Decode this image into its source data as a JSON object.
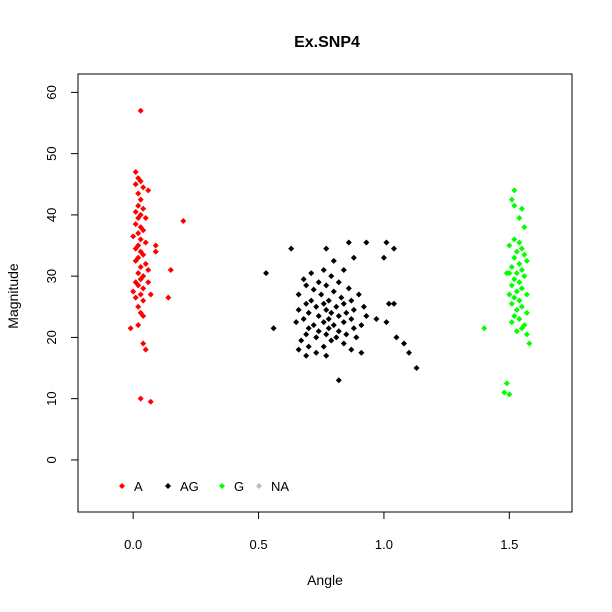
{
  "chart_data": {
    "type": "scatter",
    "title": "Ex.SNP4",
    "xlabel": "Angle",
    "ylabel": "Magnitude",
    "xlim": [
      -0.22,
      1.75
    ],
    "ylim": [
      -8.5,
      63
    ],
    "xticks": [
      0.0,
      0.5,
      1.0,
      1.5
    ],
    "xtick_labels": [
      "0.0",
      "0.5",
      "1.0",
      "1.5"
    ],
    "yticks": [
      0,
      10,
      20,
      30,
      40,
      50,
      60
    ],
    "ytick_labels": [
      "0",
      "10",
      "20",
      "30",
      "40",
      "50",
      "60"
    ],
    "grid": false,
    "legend": {
      "placement": "bottom-left",
      "entries": [
        {
          "label": "A",
          "color": "#ff0000"
        },
        {
          "label": "AG",
          "color": "#000000"
        },
        {
          "label": "G",
          "color": "#00ff00"
        },
        {
          "label": "NA",
          "color": "#bebebe"
        }
      ]
    },
    "series": [
      {
        "name": "A",
        "color": "#ff0000",
        "points": [
          [
            0.03,
            57.0
          ],
          [
            0.01,
            47.0
          ],
          [
            0.02,
            46.0
          ],
          [
            0.03,
            45.5
          ],
          [
            0.01,
            45.0
          ],
          [
            0.04,
            44.5
          ],
          [
            0.06,
            44.0
          ],
          [
            0.02,
            43.5
          ],
          [
            0.03,
            42.5
          ],
          [
            0.02,
            41.5
          ],
          [
            0.04,
            41.0
          ],
          [
            0.01,
            40.5
          ],
          [
            0.03,
            40.0
          ],
          [
            0.02,
            39.5
          ],
          [
            0.05,
            39.5
          ],
          [
            0.2,
            39.0
          ],
          [
            0.01,
            38.5
          ],
          [
            0.03,
            38.0
          ],
          [
            0.04,
            37.5
          ],
          [
            0.02,
            37.0
          ],
          [
            0.0,
            36.5
          ],
          [
            0.03,
            36.0
          ],
          [
            0.05,
            35.5
          ],
          [
            0.02,
            35.0
          ],
          [
            0.09,
            35.0
          ],
          [
            0.01,
            34.5
          ],
          [
            0.03,
            34.0
          ],
          [
            0.09,
            34.0
          ],
          [
            0.04,
            33.5
          ],
          [
            0.02,
            33.0
          ],
          [
            0.01,
            32.5
          ],
          [
            0.05,
            32.0
          ],
          [
            0.03,
            31.5
          ],
          [
            0.06,
            31.0
          ],
          [
            0.15,
            31.0
          ],
          [
            0.02,
            30.5
          ],
          [
            0.04,
            30.0
          ],
          [
            0.03,
            29.5
          ],
          [
            0.01,
            29.0
          ],
          [
            0.06,
            29.0
          ],
          [
            0.02,
            28.5
          ],
          [
            0.04,
            28.0
          ],
          [
            0.0,
            27.5
          ],
          [
            0.03,
            27.0
          ],
          [
            0.07,
            27.0
          ],
          [
            0.01,
            26.5
          ],
          [
            0.14,
            26.5
          ],
          [
            0.04,
            26.0
          ],
          [
            0.02,
            25.0
          ],
          [
            0.03,
            24.0
          ],
          [
            0.04,
            23.5
          ],
          [
            -0.01,
            21.5
          ],
          [
            0.02,
            22.0
          ],
          [
            0.04,
            19.0
          ],
          [
            0.05,
            18.0
          ],
          [
            0.03,
            10.0
          ],
          [
            0.07,
            9.5
          ]
        ]
      },
      {
        "name": "AG",
        "color": "#000000",
        "points": [
          [
            0.63,
            34.5
          ],
          [
            0.77,
            34.5
          ],
          [
            0.53,
            30.5
          ],
          [
            0.86,
            35.5
          ],
          [
            0.93,
            35.5
          ],
          [
            1.01,
            35.5
          ],
          [
            1.04,
            34.5
          ],
          [
            0.8,
            32.5
          ],
          [
            0.88,
            33.0
          ],
          [
            1.0,
            33.0
          ],
          [
            0.84,
            31.0
          ],
          [
            0.76,
            31.0
          ],
          [
            0.71,
            30.5
          ],
          [
            0.79,
            30.0
          ],
          [
            0.68,
            29.5
          ],
          [
            0.74,
            29.0
          ],
          [
            0.82,
            29.0
          ],
          [
            0.69,
            28.5
          ],
          [
            0.77,
            28.5
          ],
          [
            0.86,
            28.0
          ],
          [
            0.72,
            27.8
          ],
          [
            0.8,
            27.5
          ],
          [
            0.66,
            27.0
          ],
          [
            0.75,
            27.0
          ],
          [
            0.9,
            27.0
          ],
          [
            0.83,
            26.5
          ],
          [
            0.71,
            26.0
          ],
          [
            0.78,
            26.0
          ],
          [
            0.87,
            26.0
          ],
          [
            0.69,
            25.5
          ],
          [
            0.76,
            25.5
          ],
          [
            0.84,
            25.5
          ],
          [
            0.92,
            25.0
          ],
          [
            1.02,
            25.5
          ],
          [
            1.04,
            25.5
          ],
          [
            0.73,
            25.0
          ],
          [
            0.81,
            25.0
          ],
          [
            0.66,
            24.5
          ],
          [
            0.77,
            24.5
          ],
          [
            0.88,
            24.5
          ],
          [
            0.7,
            24.0
          ],
          [
            0.79,
            24.0
          ],
          [
            0.85,
            24.0
          ],
          [
            0.74,
            23.5
          ],
          [
            0.82,
            23.5
          ],
          [
            0.93,
            23.5
          ],
          [
            0.68,
            23.0
          ],
          [
            0.78,
            23.0
          ],
          [
            0.87,
            23.0
          ],
          [
            0.97,
            23.0
          ],
          [
            1.01,
            22.5
          ],
          [
            0.65,
            22.5
          ],
          [
            0.76,
            22.5
          ],
          [
            0.84,
            22.5
          ],
          [
            0.72,
            22.0
          ],
          [
            0.8,
            22.0
          ],
          [
            0.91,
            22.0
          ],
          [
            0.56,
            21.5
          ],
          [
            0.7,
            21.5
          ],
          [
            0.78,
            21.5
          ],
          [
            0.88,
            21.5
          ],
          [
            0.74,
            21.0
          ],
          [
            0.82,
            21.0
          ],
          [
            0.69,
            20.5
          ],
          [
            0.77,
            20.5
          ],
          [
            0.85,
            20.5
          ],
          [
            0.73,
            20.0
          ],
          [
            0.81,
            20.0
          ],
          [
            0.89,
            20.0
          ],
          [
            1.05,
            20.0
          ],
          [
            0.67,
            19.5
          ],
          [
            0.79,
            19.5
          ],
          [
            0.84,
            19.0
          ],
          [
            1.08,
            19.0
          ],
          [
            0.7,
            18.5
          ],
          [
            0.76,
            18.5
          ],
          [
            0.87,
            18.0
          ],
          [
            0.66,
            18.0
          ],
          [
            0.73,
            17.5
          ],
          [
            0.91,
            17.5
          ],
          [
            1.1,
            17.5
          ],
          [
            0.69,
            17.0
          ],
          [
            0.77,
            17.0
          ],
          [
            1.13,
            15.0
          ],
          [
            0.82,
            13.0
          ]
        ]
      },
      {
        "name": "G",
        "color": "#00ff00",
        "points": [
          [
            1.52,
            44.0
          ],
          [
            1.51,
            42.5
          ],
          [
            1.52,
            41.5
          ],
          [
            1.55,
            41.0
          ],
          [
            1.54,
            39.5
          ],
          [
            1.56,
            38.0
          ],
          [
            1.52,
            36.0
          ],
          [
            1.54,
            35.5
          ],
          [
            1.5,
            35.0
          ],
          [
            1.55,
            34.5
          ],
          [
            1.53,
            34.0
          ],
          [
            1.56,
            33.5
          ],
          [
            1.52,
            33.0
          ],
          [
            1.57,
            32.5
          ],
          [
            1.54,
            32.0
          ],
          [
            1.51,
            31.5
          ],
          [
            1.55,
            31.0
          ],
          [
            1.53,
            30.5
          ],
          [
            1.5,
            30.5
          ],
          [
            1.49,
            30.5
          ],
          [
            1.56,
            30.0
          ],
          [
            1.52,
            29.5
          ],
          [
            1.54,
            29.0
          ],
          [
            1.51,
            28.5
          ],
          [
            1.55,
            28.0
          ],
          [
            1.53,
            27.5
          ],
          [
            1.5,
            27.0
          ],
          [
            1.57,
            27.0
          ],
          [
            1.52,
            26.5
          ],
          [
            1.54,
            26.0
          ],
          [
            1.51,
            25.5
          ],
          [
            1.55,
            25.0
          ],
          [
            1.53,
            24.5
          ],
          [
            1.57,
            24.0
          ],
          [
            1.52,
            23.5
          ],
          [
            1.54,
            23.0
          ],
          [
            1.51,
            22.5
          ],
          [
            1.56,
            22.0
          ],
          [
            1.55,
            21.5
          ],
          [
            1.4,
            21.5
          ],
          [
            1.53,
            21.0
          ],
          [
            1.57,
            20.5
          ],
          [
            1.58,
            19.0
          ],
          [
            1.49,
            12.5
          ],
          [
            1.48,
            11.0
          ],
          [
            1.5,
            10.7
          ]
        ]
      }
    ]
  }
}
